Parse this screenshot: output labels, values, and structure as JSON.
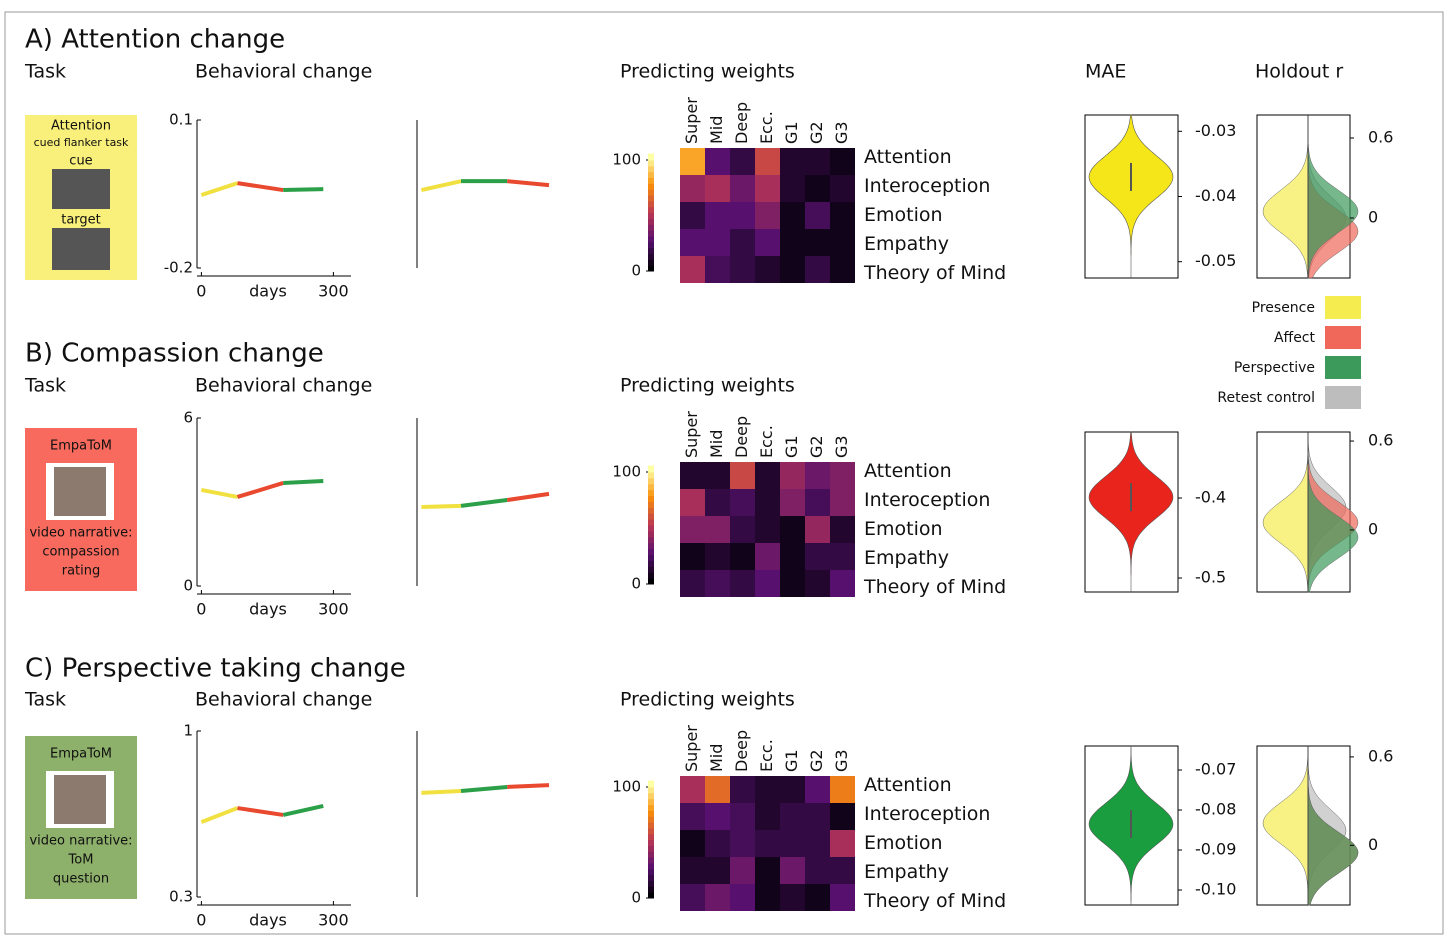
{
  "chart_data": [
    {
      "title": "A) Attention change",
      "task_label": "Task",
      "behavior_label": "Behavioral change",
      "weights_label": "Predicting weights",
      "mae_label": "MAE",
      "holdout_label": "Holdout r",
      "task": {
        "lines": [
          "Attention",
          "cued flanker task",
          "cue",
          "target"
        ],
        "color": "#f8f07a"
      },
      "behavior": {
        "type": "line",
        "xlabel": "days",
        "xlim": [
          -10,
          340
        ],
        "xticks": [
          0,
          300
        ],
        "ylim": [
          -0.2,
          0.1
        ],
        "yticks": [
          -0.2,
          0.1
        ],
        "plots": [
          {
            "x": [
              0,
              82,
              186,
              277
            ],
            "values": [
              -0.052,
              -0.028,
              -0.042,
              -0.04
            ],
            "colors": [
              "#f0e040",
              "#e8492f",
              "#2ca048"
            ]
          },
          {
            "x": [
              0,
              90,
              195,
              290
            ],
            "values": [
              -0.042,
              -0.024,
              -0.024,
              -0.032
            ],
            "colors": [
              "#f0e040",
              "#2ca048",
              "#e8492f"
            ]
          }
        ]
      },
      "weights": {
        "type": "heatmap",
        "columns": [
          "Super",
          "Mid",
          "Deep",
          "Ecc.",
          "G1",
          "G2",
          "G3"
        ],
        "rows": [
          "Attention",
          "Interoception",
          "Emotion",
          "Empathy",
          "Theory of Mind"
        ],
        "clim": [
          0,
          100
        ],
        "cticks": [
          0,
          100
        ],
        "values": [
          [
            80,
            25,
            15,
            55,
            10,
            10,
            5
          ],
          [
            40,
            45,
            30,
            45,
            10,
            5,
            10
          ],
          [
            15,
            25,
            25,
            35,
            5,
            20,
            5
          ],
          [
            25,
            25,
            15,
            25,
            5,
            5,
            5
          ],
          [
            45,
            20,
            15,
            10,
            5,
            15,
            5
          ]
        ]
      },
      "mae": {
        "type": "violin",
        "ylim": [
          -0.0525,
          -0.0275
        ],
        "yticks": [
          -0.05,
          -0.04,
          -0.03
        ],
        "median": -0.037,
        "color": "#f5e61a"
      },
      "holdout": {
        "type": "split-violin",
        "ylim": [
          -0.45,
          0.7725
        ],
        "yticks": [
          0,
          0.6
        ],
        "medians": [
          0.05,
          -0.1,
          0.05,
          0
        ]
      }
    },
    {
      "title": "B) Compassion change",
      "task_label": "Task",
      "behavior_label": "Behavioral change",
      "weights_label": "Predicting weights",
      "task": {
        "lines": [
          "EmpaToM",
          "video narrative:",
          "compassion",
          "rating"
        ],
        "color": "#f76a5d"
      },
      "behavior": {
        "type": "line",
        "xlabel": "days",
        "xlim": [
          -10,
          340
        ],
        "xticks": [
          0,
          300
        ],
        "ylim": [
          0,
          6
        ],
        "yticks": [
          0,
          6
        ],
        "plots": [
          {
            "x": [
              0,
              82,
              186,
              277
            ],
            "values": [
              3.43,
              3.18,
              3.68,
              3.75
            ],
            "colors": [
              "#f0e040",
              "#e8492f",
              "#2ca048"
            ]
          },
          {
            "x": [
              0,
              90,
              195,
              290
            ],
            "values": [
              2.82,
              2.86,
              3.07,
              3.29
            ],
            "colors": [
              "#f0e040",
              "#2ca048",
              "#e8492f"
            ]
          }
        ]
      },
      "weights": {
        "type": "heatmap",
        "columns": [
          "Super",
          "Mid",
          "Deep",
          "Ecc.",
          "G1",
          "G2",
          "G3"
        ],
        "rows": [
          "Attention",
          "Interoception",
          "Emotion",
          "Empathy",
          "Theory of Mind"
        ],
        "clim": [
          0,
          100
        ],
        "cticks": [
          0,
          100
        ],
        "values": [
          [
            10,
            10,
            55,
            10,
            40,
            30,
            35
          ],
          [
            45,
            15,
            20,
            10,
            35,
            20,
            35
          ],
          [
            35,
            35,
            15,
            10,
            5,
            40,
            10
          ],
          [
            5,
            10,
            5,
            30,
            5,
            15,
            15
          ],
          [
            15,
            20,
            15,
            25,
            5,
            10,
            25
          ]
        ]
      },
      "mae": {
        "type": "violin",
        "ylim": [
          -0.5175,
          -0.3175
        ],
        "yticks": [
          -0.5,
          -0.4
        ],
        "median": -0.399,
        "color": "#e8241d"
      },
      "holdout": {
        "type": "split-violin",
        "ylim": [
          -0.419,
          0.661
        ],
        "yticks": [
          0,
          0.6
        ],
        "medians": [
          0.05,
          0.05,
          -0.05,
          0.15
        ]
      }
    },
    {
      "title": "C) Perspective taking change",
      "task_label": "Task",
      "behavior_label": "Behavioral change",
      "weights_label": "Predicting weights",
      "task": {
        "lines": [
          "EmpaToM",
          "video narrative:",
          "ToM",
          "question"
        ],
        "color": "#8db06a"
      },
      "behavior": {
        "type": "line",
        "xlabel": "days",
        "xlim": [
          -10,
          340
        ],
        "xticks": [
          0,
          300
        ],
        "ylim": [
          0.3,
          1
        ],
        "yticks": [
          0.3,
          1
        ],
        "plots": [
          {
            "x": [
              0,
              82,
              186,
              277
            ],
            "values": [
              0.616,
              0.675,
              0.646,
              0.684
            ],
            "colors": [
              "#f0e040",
              "#e8492f",
              "#2ca048"
            ]
          },
          {
            "x": [
              0,
              90,
              195,
              290
            ],
            "values": [
              0.739,
              0.747,
              0.764,
              0.772
            ],
            "colors": [
              "#f0e040",
              "#2ca048",
              "#e8492f"
            ]
          }
        ]
      },
      "weights": {
        "type": "heatmap",
        "columns": [
          "Super",
          "Mid",
          "Deep",
          "Ecc.",
          "G1",
          "G2",
          "G3"
        ],
        "rows": [
          "Attention",
          "Interoception",
          "Emotion",
          "Empathy",
          "Theory of Mind"
        ],
        "clim": [
          0,
          100
        ],
        "cticks": [
          0,
          100
        ],
        "values": [
          [
            45,
            65,
            15,
            10,
            10,
            25,
            70
          ],
          [
            20,
            25,
            20,
            10,
            15,
            15,
            5
          ],
          [
            5,
            15,
            20,
            15,
            15,
            15,
            45
          ],
          [
            10,
            10,
            30,
            5,
            30,
            15,
            15
          ],
          [
            20,
            30,
            25,
            5,
            10,
            5,
            25
          ]
        ]
      },
      "mae": {
        "type": "violin",
        "ylim": [
          -0.10375,
          -0.064
        ],
        "yticks": [
          {
            "value": -0.1,
            "label": "-0.10"
          },
          -0.09,
          -0.08,
          -0.07
        ],
        "median": -0.0835,
        "color": "#1a9d3e"
      },
      "holdout": {
        "type": "split-violin",
        "ylim": [
          -0.405,
          0.674
        ],
        "yticks": [
          0,
          0.6
        ],
        "medians": [
          0.15,
          -0.05,
          -0.05,
          0.1
        ]
      }
    }
  ],
  "legend": [
    {
      "name": "Presence",
      "color": "#f5ec50"
    },
    {
      "name": "Affect",
      "color": "#f0685a"
    },
    {
      "name": "Perspective",
      "color": "#3c9a5a"
    },
    {
      "name": "Retest control",
      "color": "#bdbdbd"
    }
  ]
}
